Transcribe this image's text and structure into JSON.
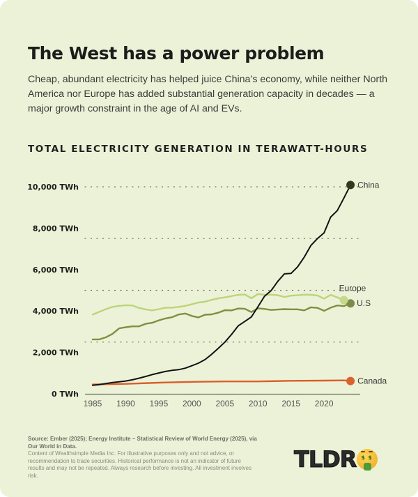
{
  "header": {
    "title": "The West has a power problem",
    "subtitle": "Cheap, abundant electricity has helped juice China’s economy, while neither North America nor Europe has added substantial generation capacity in decades — a major growth constraint in the age of AI and EVs."
  },
  "chart_data": {
    "type": "line",
    "title": "TOTAL ELECTRICITY GENERATION IN TERAWATT-HOURS",
    "xlabel": "",
    "ylabel": "",
    "xlim": [
      1985,
      2024
    ],
    "ylim": [
      0,
      10000
    ],
    "x_ticks": [
      "1985",
      "1990",
      "1995",
      "2000",
      "2005",
      "2010",
      "2015",
      "2020"
    ],
    "y_ticks": [
      {
        "value": 0,
        "label": "0 TWh"
      },
      {
        "value": 2000,
        "label": "2,000 TWh"
      },
      {
        "value": 4000,
        "label": "4,000 TWh"
      },
      {
        "value": 6000,
        "label": "6,000 TWh"
      },
      {
        "value": 8000,
        "label": "8,000 TWh"
      },
      {
        "value": 10000,
        "label": "10,000 TWh"
      }
    ],
    "gridlines": [
      2500,
      5000,
      7500,
      10000
    ],
    "grid_style": "dotted",
    "legend": "direct-labels-at-line-ends",
    "series": [
      {
        "name": "China",
        "color": "#111111",
        "marker_color": "#2f3a1c",
        "x": [
          1985,
          1986,
          1987,
          1988,
          1989,
          1990,
          1991,
          1992,
          1993,
          1994,
          1995,
          1996,
          1997,
          1998,
          1999,
          2000,
          2001,
          2002,
          2003,
          2004,
          2005,
          2006,
          2007,
          2008,
          2009,
          2010,
          2011,
          2012,
          2013,
          2014,
          2015,
          2016,
          2017,
          2018,
          2019,
          2020,
          2021,
          2022,
          2023,
          2024
        ],
        "values": [
          411,
          449,
          497,
          545,
          584,
          621,
          678,
          753,
          839,
          928,
          1007,
          1081,
          1134,
          1167,
          1239,
          1356,
          1480,
          1654,
          1910,
          2200,
          2500,
          2866,
          3280,
          3496,
          3714,
          4208,
          4713,
          4987,
          5432,
          5795,
          5815,
          6133,
          6604,
          7166,
          7503,
          7779,
          8534,
          8849,
          9456,
          10087
        ]
      },
      {
        "name": "Europe",
        "color": "#bcd47a",
        "marker_color": "#c4d98a",
        "x": [
          1985,
          1986,
          1987,
          1988,
          1989,
          1990,
          1991,
          1992,
          1993,
          1994,
          1995,
          1996,
          1997,
          1998,
          1999,
          2000,
          2001,
          2002,
          2003,
          2004,
          2005,
          2006,
          2007,
          2008,
          2009,
          2010,
          2011,
          2012,
          2013,
          2014,
          2015,
          2016,
          2017,
          2018,
          2019,
          2020,
          2021,
          2022,
          2023
        ],
        "values": [
          3830,
          3960,
          4090,
          4200,
          4250,
          4280,
          4270,
          4150,
          4080,
          4030,
          4090,
          4160,
          4160,
          4200,
          4250,
          4330,
          4410,
          4450,
          4540,
          4610,
          4660,
          4720,
          4780,
          4800,
          4620,
          4820,
          4780,
          4790,
          4760,
          4680,
          4740,
          4760,
          4790,
          4780,
          4750,
          4600,
          4780,
          4660,
          4530
        ]
      },
      {
        "name": "U.S",
        "color": "#7c9140",
        "marker_color": "#7c8c48",
        "x": [
          1985,
          1986,
          1987,
          1988,
          1989,
          1990,
          1991,
          1992,
          1993,
          1994,
          1995,
          1996,
          1997,
          1998,
          1999,
          2000,
          2001,
          2002,
          2003,
          2004,
          2005,
          2006,
          2007,
          2008,
          2009,
          2010,
          2011,
          2012,
          2013,
          2014,
          2015,
          2016,
          2017,
          2018,
          2019,
          2020,
          2021,
          2022,
          2023,
          2024
        ],
        "values": [
          2630,
          2630,
          2730,
          2900,
          3160,
          3220,
          3260,
          3260,
          3380,
          3430,
          3550,
          3640,
          3700,
          3830,
          3880,
          3760,
          3690,
          3820,
          3840,
          3920,
          4040,
          4030,
          4120,
          4110,
          3950,
          4130,
          4100,
          4050,
          4070,
          4090,
          4080,
          4080,
          4030,
          4180,
          4150,
          4010,
          4160,
          4270,
          4240,
          4370
        ]
      },
      {
        "name": "Canada",
        "color": "#d95f2b",
        "marker_color": "#d9622f",
        "x": [
          1985,
          1990,
          1995,
          2000,
          2005,
          2010,
          2015,
          2020,
          2023,
          2024
        ],
        "values": [
          450,
          480,
          540,
          580,
          600,
          600,
          630,
          640,
          650,
          620
        ]
      }
    ]
  },
  "footer": {
    "source_line": "Source: Ember (2025); Energy Institute – Statistical Review of World Energy (2025), via Our World in Data.",
    "disclaimer": "Content of Wealthsimple Media Inc. For illustrative purposes only and not advice, or recommendation to trade securities. Historical performance is not an indicator of future results and may not be repeated. Always research before investing. All investment involves risk.",
    "logo_text": "TLDR",
    "logo_emoji": "money-mouth-face"
  }
}
